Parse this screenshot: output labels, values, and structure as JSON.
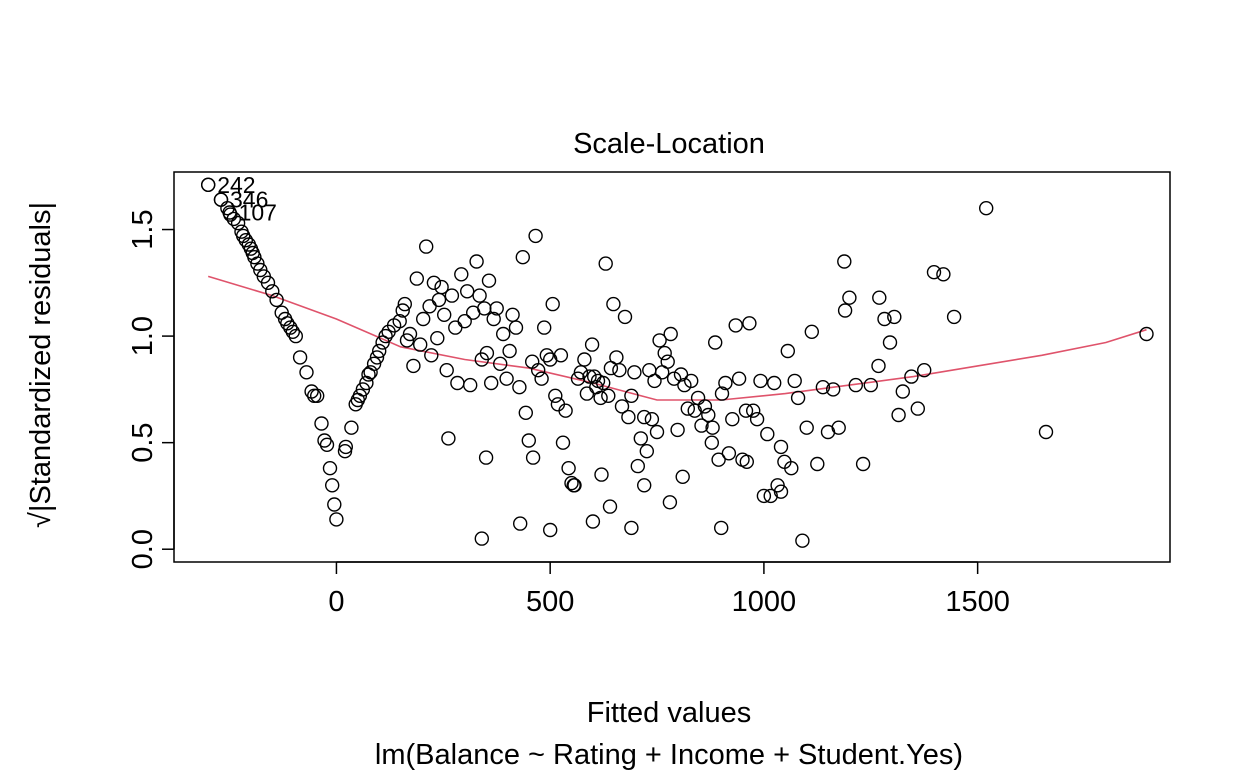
{
  "chart_data": {
    "type": "scatter",
    "title": "Scale-Location",
    "xlabel": "Fitted values",
    "sublabel": "lm(Balance ~ Rating + Income + Student.Yes)",
    "ylabel": "√|Standardized residuals|",
    "xlim": [
      -380,
      1950
    ],
    "ylim": [
      -0.06,
      1.77
    ],
    "x_ticks": [
      0,
      500,
      1000,
      1500
    ],
    "y_ticks": [
      0.0,
      0.5,
      1.0,
      1.5
    ],
    "x_tick_labels": [
      "0",
      "500",
      "1000",
      "1500"
    ],
    "y_tick_labels": [
      "0.0",
      "0.5",
      "1.0",
      "1.5"
    ],
    "grid": false,
    "colors": {
      "points": "#000000",
      "smoother": "#DF536B"
    },
    "labeled_points": [
      {
        "label": "242",
        "x": -300,
        "y": 1.71
      },
      {
        "label": "346",
        "x": -270,
        "y": 1.64
      },
      {
        "label": "107",
        "x": -250,
        "y": 1.58
      }
    ],
    "smoother": {
      "x": [
        -300,
        -150,
        0,
        150,
        300,
        450,
        600,
        750,
        900,
        1050,
        1200,
        1350,
        1500,
        1650,
        1800,
        1895
      ],
      "y": [
        1.28,
        1.19,
        1.08,
        0.95,
        0.89,
        0.85,
        0.78,
        0.7,
        0.7,
        0.73,
        0.77,
        0.81,
        0.86,
        0.91,
        0.97,
        1.03
      ]
    },
    "points": {
      "x": [
        -300,
        -270,
        -255,
        -248,
        -240,
        -230,
        -222,
        -218,
        -212,
        -205,
        -200,
        -196,
        -192,
        -185,
        -178,
        -170,
        -160,
        -150,
        -140,
        -128,
        -120,
        -115,
        -108,
        -102,
        -95,
        -85,
        -70,
        -58,
        -52,
        -45,
        -35,
        -28,
        -22,
        -15,
        -10,
        -5,
        0,
        20,
        22,
        35,
        45,
        50,
        55,
        62,
        70,
        75,
        80,
        88,
        95,
        100,
        108,
        115,
        122,
        135,
        148,
        155,
        160,
        165,
        172,
        180,
        188,
        196,
        203,
        210,
        218,
        222,
        228,
        236,
        240,
        246,
        252,
        258,
        262,
        270,
        278,
        283,
        292,
        300,
        306,
        313,
        320,
        328,
        335,
        340,
        346,
        352,
        357,
        362,
        368,
        375,
        383,
        390,
        398,
        405,
        412,
        420,
        428,
        436,
        443,
        450,
        458,
        466,
        472,
        480,
        486,
        492,
        500,
        506,
        512,
        518,
        525,
        530,
        536,
        543,
        550,
        557,
        565,
        572,
        580,
        586,
        592,
        598,
        603,
        608,
        612,
        618,
        624,
        630,
        636,
        642,
        648,
        655,
        662,
        668,
        675,
        683,
        690,
        697,
        705,
        712,
        720,
        726,
        732,
        738,
        744,
        750,
        756,
        762,
        768,
        775,
        782,
        790,
        798,
        806,
        814,
        822,
        830,
        838,
        846,
        854,
        862,
        870,
        878,
        886,
        894,
        902,
        910,
        918,
        926,
        934,
        942,
        950,
        958,
        966,
        975,
        984,
        992,
        1000,
        1008,
        1016,
        1024,
        1032,
        1040,
        1048,
        1056,
        1064,
        1072,
        1080,
        1090,
        1100,
        1112,
        1125,
        1138,
        1150,
        1162,
        1175,
        1188,
        1200,
        1215,
        1232,
        1250,
        1268,
        1282,
        1295,
        1305,
        1315,
        1325,
        1345,
        1360,
        1375,
        1398,
        1420,
        1445,
        1520,
        1660,
        1895,
        780,
        430,
        340,
        460,
        900,
        690,
        555,
        810,
        1040,
        1190,
        1270,
        600,
        620,
        500,
        720,
        880,
        960,
        350,
        640
      ],
      "y": [
        1.71,
        1.64,
        1.6,
        1.57,
        1.55,
        1.53,
        1.49,
        1.47,
        1.45,
        1.43,
        1.41,
        1.39,
        1.37,
        1.34,
        1.31,
        1.28,
        1.25,
        1.21,
        1.17,
        1.11,
        1.08,
        1.06,
        1.04,
        1.02,
        1.0,
        0.9,
        0.83,
        0.74,
        0.72,
        0.72,
        0.59,
        0.51,
        0.49,
        0.38,
        0.3,
        0.21,
        0.14,
        0.46,
        0.48,
        0.57,
        0.68,
        0.7,
        0.72,
        0.75,
        0.78,
        0.82,
        0.83,
        0.87,
        0.9,
        0.93,
        0.97,
        1.0,
        1.02,
        1.05,
        1.07,
        1.12,
        1.15,
        0.98,
        1.01,
        0.86,
        1.27,
        0.96,
        1.08,
        1.42,
        1.14,
        0.91,
        1.25,
        0.99,
        1.17,
        1.23,
        1.1,
        0.84,
        0.52,
        1.19,
        1.04,
        0.78,
        1.29,
        1.07,
        1.21,
        0.77,
        1.11,
        1.35,
        1.19,
        0.89,
        1.13,
        0.92,
        1.26,
        0.78,
        1.08,
        1.13,
        0.87,
        1.01,
        0.8,
        0.93,
        1.1,
        1.04,
        0.76,
        1.37,
        0.64,
        0.51,
        0.88,
        1.47,
        0.84,
        0.8,
        1.04,
        0.91,
        0.89,
        1.15,
        0.72,
        0.68,
        0.91,
        0.5,
        0.65,
        0.38,
        0.31,
        0.3,
        0.8,
        0.83,
        0.89,
        0.73,
        0.81,
        0.96,
        0.81,
        0.76,
        0.79,
        0.71,
        0.78,
        1.34,
        0.72,
        0.85,
        1.15,
        0.9,
        0.84,
        0.67,
        1.09,
        0.62,
        0.72,
        0.83,
        0.39,
        0.52,
        0.62,
        0.46,
        0.84,
        0.61,
        0.79,
        0.55,
        0.98,
        0.83,
        0.92,
        0.88,
        1.01,
        0.8,
        0.56,
        0.82,
        0.77,
        0.66,
        0.79,
        0.65,
        0.71,
        0.58,
        0.67,
        0.63,
        0.5,
        0.97,
        0.42,
        0.73,
        0.78,
        0.45,
        0.61,
        1.05,
        0.8,
        0.42,
        0.65,
        1.06,
        0.65,
        0.61,
        0.79,
        0.25,
        0.54,
        0.25,
        0.78,
        0.3,
        0.27,
        0.41,
        0.93,
        0.38,
        0.79,
        0.71,
        0.04,
        0.57,
        1.02,
        0.4,
        0.76,
        0.55,
        0.75,
        0.57,
        1.35,
        1.18,
        0.77,
        0.4,
        0.77,
        0.86,
        1.08,
        0.97,
        1.09,
        0.63,
        0.74,
        0.81,
        0.66,
        0.84,
        1.3,
        1.29,
        1.09,
        1.6,
        0.55,
        1.01,
        0.22,
        0.12,
        0.05,
        0.43,
        0.1,
        0.1,
        0.3,
        0.34,
        0.48,
        1.12,
        1.18,
        0.13,
        0.35,
        0.09,
        0.3,
        0.57,
        0.41,
        0.43,
        0.2
      ]
    }
  }
}
